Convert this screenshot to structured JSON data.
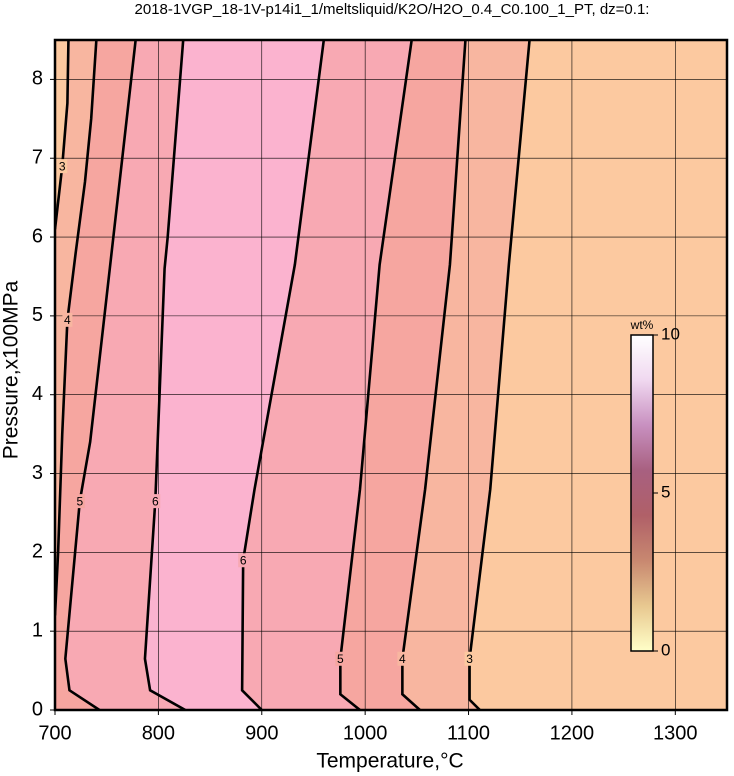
{
  "chart_data": {
    "type": "contour",
    "title": "2018-1VGP_18-1V-p14i1_1/meltsliquid/K2O/H2O_0.4_C0.100_1_PT, dz=0.1:",
    "x_label": "Temperature,°C",
    "y_label": "Pressure,x100MPa",
    "xlim": [
      700,
      1350
    ],
    "ylim": [
      0,
      8.5
    ],
    "xticks": [
      700,
      800,
      900,
      1000,
      1100,
      1200,
      1300
    ],
    "yticks": [
      0,
      1,
      2,
      3,
      4,
      5,
      6,
      7,
      8
    ],
    "grid": true,
    "background": "#fbb3cf",
    "contours": [
      {
        "level": 3,
        "side": "left",
        "fill": "#fcc9a0",
        "x": [
          713,
          712,
          707,
          700
        ],
        "y": [
          8.5,
          7.7,
          6.9,
          6.1
        ]
      },
      {
        "level": 4,
        "side": "left",
        "fill": "#f8b6a0",
        "x": [
          740,
          735,
          729,
          720,
          712,
          707,
          703,
          700
        ],
        "y": [
          8.5,
          7.5,
          6.7,
          5.8,
          4.95,
          3.5,
          2,
          1.2
        ]
      },
      {
        "level": 5,
        "side": "left",
        "fill": "#f6a6a0",
        "x": [
          778,
          753,
          734,
          724,
          710,
          714,
          743
        ],
        "y": [
          8.5,
          5.6,
          3.4,
          2.65,
          0.65,
          0.25,
          0
        ]
      },
      {
        "level": 6,
        "side": "left",
        "fill": "#f8a9b3",
        "x": [
          824,
          809,
          806,
          797,
          787,
          792,
          826
        ],
        "y": [
          8.5,
          6.0,
          5.6,
          2.65,
          0.65,
          0.25,
          0
        ]
      },
      {
        "level": 6,
        "side": "right",
        "fill": "#f8a9b3",
        "x": [
          960,
          932,
          893,
          882,
          881,
          900
        ],
        "y": [
          8.5,
          5.65,
          2.8,
          1.9,
          0.25,
          0
        ]
      },
      {
        "level": 5,
        "side": "right",
        "fill": "#f6a6a0",
        "x": [
          1045,
          1014,
          995,
          976,
          976,
          995
        ],
        "y": [
          8.5,
          5.65,
          2.8,
          0.65,
          0.2,
          0
        ]
      },
      {
        "level": 4,
        "side": "right",
        "fill": "#f8b6a0",
        "x": [
          1097,
          1082,
          1058,
          1036,
          1036,
          1053
        ],
        "y": [
          8.5,
          5.65,
          2.8,
          0.65,
          0.2,
          0
        ]
      },
      {
        "level": 3,
        "side": "right",
        "fill": "#fcc9a0",
        "x": [
          1159,
          1139,
          1121,
          1101,
          1101,
          1111
        ],
        "y": [
          8.5,
          5.65,
          2.8,
          0.65,
          0.13,
          0
        ]
      }
    ],
    "colorbar": {
      "label": "wt%",
      "lim": [
        0,
        10
      ],
      "ticks": [
        0,
        5,
        10
      ],
      "colors": [
        "#ffffc8",
        "#e8c890",
        "#c88870",
        "#b06068",
        "#a86080",
        "#c890c0",
        "#f0d8f0",
        "#ffffff"
      ]
    }
  }
}
